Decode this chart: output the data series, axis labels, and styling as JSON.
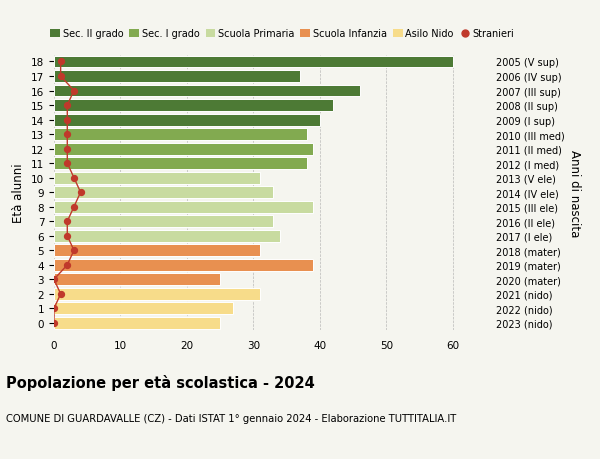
{
  "ages": [
    0,
    1,
    2,
    3,
    4,
    5,
    6,
    7,
    8,
    9,
    10,
    11,
    12,
    13,
    14,
    15,
    16,
    17,
    18
  ],
  "values": [
    25,
    27,
    31,
    25,
    39,
    31,
    34,
    33,
    39,
    33,
    31,
    38,
    39,
    38,
    40,
    42,
    46,
    37,
    60
  ],
  "bar_colors": [
    "#f7dc8a",
    "#f7dc8a",
    "#f7dc8a",
    "#e89050",
    "#e89050",
    "#e89050",
    "#c8dba0",
    "#c8dba0",
    "#c8dba0",
    "#c8dba0",
    "#c8dba0",
    "#82aa50",
    "#82aa50",
    "#82aa50",
    "#4d7a35",
    "#4d7a35",
    "#4d7a35",
    "#4d7a35",
    "#4d7a35"
  ],
  "stranieri_values": [
    0,
    0,
    1,
    0,
    2,
    3,
    2,
    2,
    3,
    4,
    3,
    2,
    2,
    2,
    2,
    2,
    3,
    1,
    1
  ],
  "right_labels": [
    "2023 (nido)",
    "2022 (nido)",
    "2021 (nido)",
    "2020 (mater)",
    "2019 (mater)",
    "2018 (mater)",
    "2017 (I ele)",
    "2016 (II ele)",
    "2015 (III ele)",
    "2014 (IV ele)",
    "2013 (V ele)",
    "2012 (I med)",
    "2011 (II med)",
    "2010 (III med)",
    "2009 (I sup)",
    "2008 (II sup)",
    "2007 (III sup)",
    "2006 (IV sup)",
    "2005 (V sup)"
  ],
  "legend_labels": [
    "Sec. II grado",
    "Sec. I grado",
    "Scuola Primaria",
    "Scuola Infanzia",
    "Asilo Nido",
    "Stranieri"
  ],
  "legend_colors": [
    "#4d7a35",
    "#82aa50",
    "#c8dba0",
    "#e89050",
    "#f7dc8a",
    "#c0392b"
  ],
  "ylabel_left": "Età alunni",
  "ylabel_right": "Anni di nascita",
  "title": "Popolazione per età scolastica - 2024",
  "subtitle": "COMUNE DI GUARDAVALLE (CZ) - Dati ISTAT 1° gennaio 2024 - Elaborazione TUTTITALIA.IT",
  "xlim": [
    0,
    65
  ],
  "xticks": [
    0,
    10,
    20,
    30,
    40,
    50,
    60
  ],
  "bg_color": "#f5f5ef",
  "stranieri_color": "#c0392b"
}
